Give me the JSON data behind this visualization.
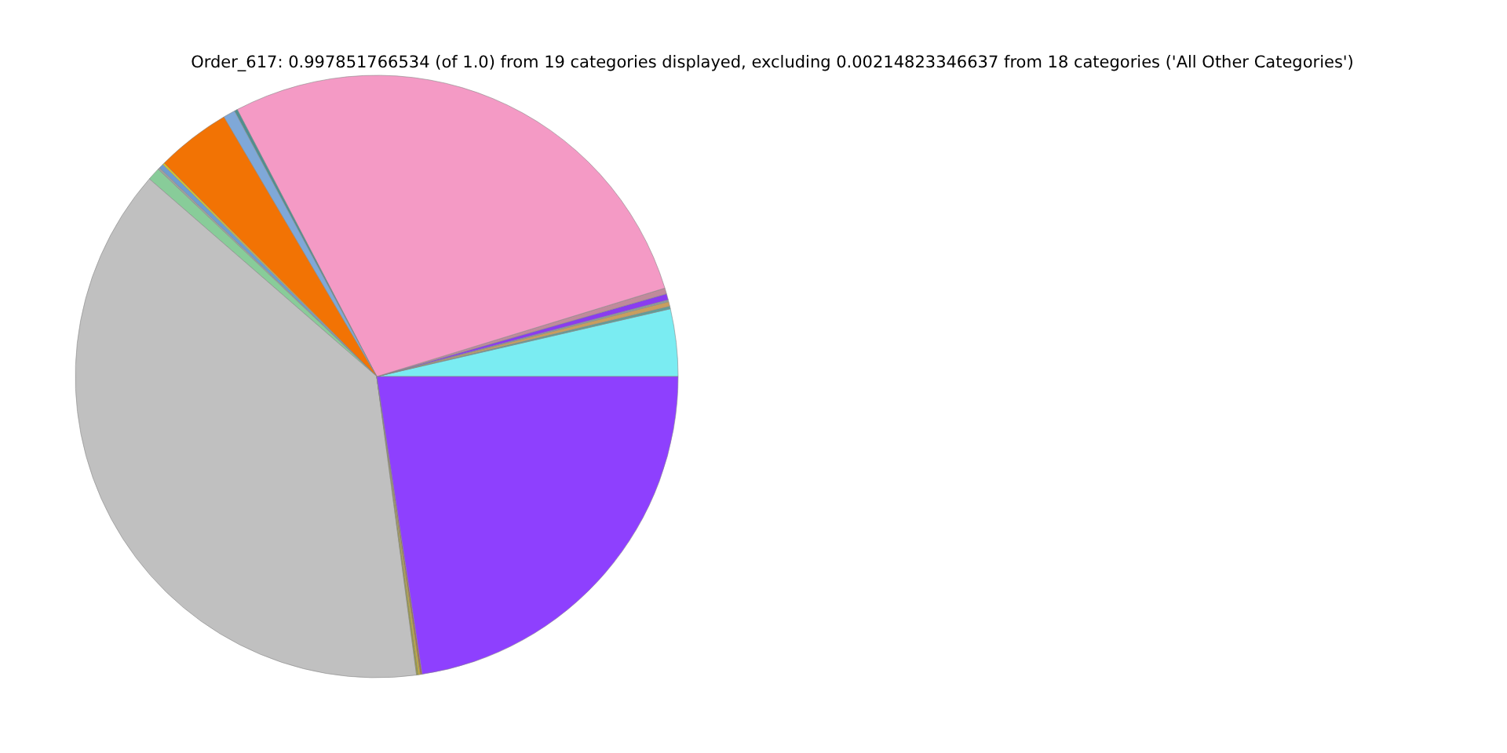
{
  "chart_data": {
    "type": "pie",
    "title": "Order_617: 0.997851766534 (of 1.0) from 19 categories displayed, excluding 0.00214823346637 from 18 categories ('All Other Categories')",
    "categories": [
      null,
      null,
      null,
      null,
      null,
      null,
      null,
      null,
      null,
      null,
      null,
      null,
      null,
      null,
      null,
      null,
      null,
      null,
      null
    ],
    "values": [
      3.61,
      0.14,
      0.25,
      0.1,
      0.33,
      0.31,
      27.92,
      0.17,
      0.64,
      4.0,
      0.1,
      0.25,
      0.1,
      0.69,
      38.5,
      0.1,
      0.1,
      0.1,
      22.59
    ],
    "colors": [
      "#7aecf2",
      "#5f9e98",
      "#c89e5e",
      "#8aa09a",
      "#8a3cf0",
      "#c08a9c",
      "#f49ac5",
      "#4f8f8f",
      "#7fa8d8",
      "#f27304",
      "#d8c820",
      "#6e9ccf",
      "#a0a0a0",
      "#88cc99",
      "#c0c0c0",
      "#9a9a40",
      "#c8b030",
      "#a07050",
      "#8e40fe"
    ]
  }
}
